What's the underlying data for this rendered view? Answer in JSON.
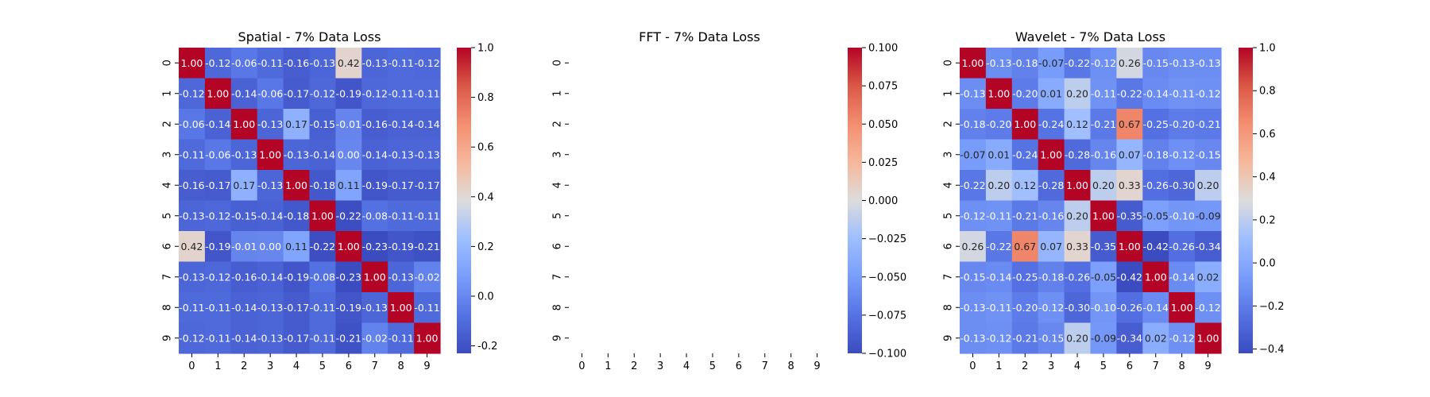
{
  "chart_data": [
    {
      "type": "heatmap",
      "title": "Spatial - 7% Data Loss",
      "x_labels": [
        "0",
        "1",
        "2",
        "3",
        "4",
        "5",
        "6",
        "7",
        "8",
        "9"
      ],
      "y_labels": [
        "0",
        "1",
        "2",
        "3",
        "4",
        "5",
        "6",
        "7",
        "8",
        "9"
      ],
      "values": [
        [
          1.0,
          -0.12,
          -0.06,
          -0.11,
          -0.16,
          -0.13,
          0.42,
          -0.13,
          -0.11,
          -0.12
        ],
        [
          -0.12,
          1.0,
          -0.14,
          -0.06,
          -0.17,
          -0.12,
          -0.19,
          -0.12,
          -0.11,
          -0.11
        ],
        [
          -0.06,
          -0.14,
          1.0,
          -0.13,
          0.17,
          -0.15,
          -0.01,
          -0.16,
          -0.14,
          -0.14
        ],
        [
          -0.11,
          -0.06,
          -0.13,
          1.0,
          -0.13,
          -0.14,
          0.0,
          -0.14,
          -0.13,
          -0.13
        ],
        [
          -0.16,
          -0.17,
          0.17,
          -0.13,
          1.0,
          -0.18,
          0.11,
          -0.19,
          -0.17,
          -0.17
        ],
        [
          -0.13,
          -0.12,
          -0.15,
          -0.14,
          -0.18,
          1.0,
          -0.22,
          -0.08,
          -0.11,
          -0.11
        ],
        [
          0.42,
          -0.19,
          -0.01,
          0.0,
          0.11,
          -0.22,
          1.0,
          -0.23,
          -0.19,
          -0.21
        ],
        [
          -0.13,
          -0.12,
          -0.16,
          -0.14,
          -0.19,
          -0.08,
          -0.23,
          1.0,
          -0.13,
          -0.02
        ],
        [
          -0.11,
          -0.11,
          -0.14,
          -0.13,
          -0.17,
          -0.11,
          -0.19,
          -0.13,
          1.0,
          -0.11
        ],
        [
          -0.12,
          -0.11,
          -0.14,
          -0.13,
          -0.17,
          -0.11,
          -0.21,
          -0.02,
          -0.11,
          1.0
        ]
      ],
      "value_range": [
        -0.23,
        1.0
      ],
      "colorbar_ticks": [
        "-0.2",
        "0.0",
        "0.2",
        "0.4",
        "0.6",
        "0.8",
        "1.0"
      ],
      "colormap": "coolwarm",
      "annotated": true
    },
    {
      "type": "heatmap",
      "title": "FFT - 7% Data Loss",
      "x_labels": [
        "0",
        "1",
        "2",
        "3",
        "4",
        "5",
        "6",
        "7",
        "8",
        "9"
      ],
      "y_labels": [
        "0",
        "1",
        "2",
        "3",
        "4",
        "5",
        "6",
        "7",
        "8",
        "9"
      ],
      "values": [],
      "value_range": [
        -0.1,
        0.1
      ],
      "colorbar_ticks": [
        "−0.100",
        "−0.075",
        "−0.050",
        "−0.025",
        "0.000",
        "0.025",
        "0.050",
        "0.075",
        "0.100"
      ],
      "colormap": "coolwarm",
      "annotated": true
    },
    {
      "type": "heatmap",
      "title": "Wavelet - 7% Data Loss",
      "x_labels": [
        "0",
        "1",
        "2",
        "3",
        "4",
        "5",
        "6",
        "7",
        "8",
        "9"
      ],
      "y_labels": [
        "0",
        "1",
        "2",
        "3",
        "4",
        "5",
        "6",
        "7",
        "8",
        "9"
      ],
      "values": [
        [
          1.0,
          -0.13,
          -0.18,
          -0.07,
          -0.22,
          -0.12,
          0.26,
          -0.15,
          -0.13,
          -0.13
        ],
        [
          -0.13,
          1.0,
          -0.2,
          0.01,
          0.2,
          -0.11,
          -0.22,
          -0.14,
          -0.11,
          -0.12
        ],
        [
          -0.18,
          -0.2,
          1.0,
          -0.24,
          0.12,
          -0.21,
          0.67,
          -0.25,
          -0.2,
          -0.21
        ],
        [
          -0.07,
          0.01,
          -0.24,
          1.0,
          -0.28,
          -0.16,
          0.07,
          -0.18,
          -0.12,
          -0.15
        ],
        [
          -0.22,
          0.2,
          0.12,
          -0.28,
          1.0,
          0.2,
          0.33,
          -0.26,
          -0.3,
          0.2
        ],
        [
          -0.12,
          -0.11,
          -0.21,
          -0.16,
          0.2,
          1.0,
          -0.35,
          -0.05,
          -0.1,
          -0.09
        ],
        [
          0.26,
          -0.22,
          0.67,
          0.07,
          0.33,
          -0.35,
          1.0,
          -0.42,
          -0.26,
          -0.34
        ],
        [
          -0.15,
          -0.14,
          -0.25,
          -0.18,
          -0.26,
          -0.05,
          -0.42,
          1.0,
          -0.14,
          0.02
        ],
        [
          -0.13,
          -0.11,
          -0.2,
          -0.12,
          -0.3,
          -0.1,
          -0.26,
          -0.14,
          1.0,
          -0.12
        ],
        [
          -0.13,
          -0.12,
          -0.21,
          -0.15,
          0.2,
          -0.09,
          -0.34,
          0.02,
          -0.12,
          1.0
        ]
      ],
      "value_range": [
        -0.42,
        1.0
      ],
      "colorbar_ticks": [
        "−0.4",
        "−0.2",
        "0.0",
        "0.2",
        "0.4",
        "0.6",
        "0.8",
        "1.0"
      ],
      "colormap": "coolwarm",
      "annotated": true
    }
  ]
}
